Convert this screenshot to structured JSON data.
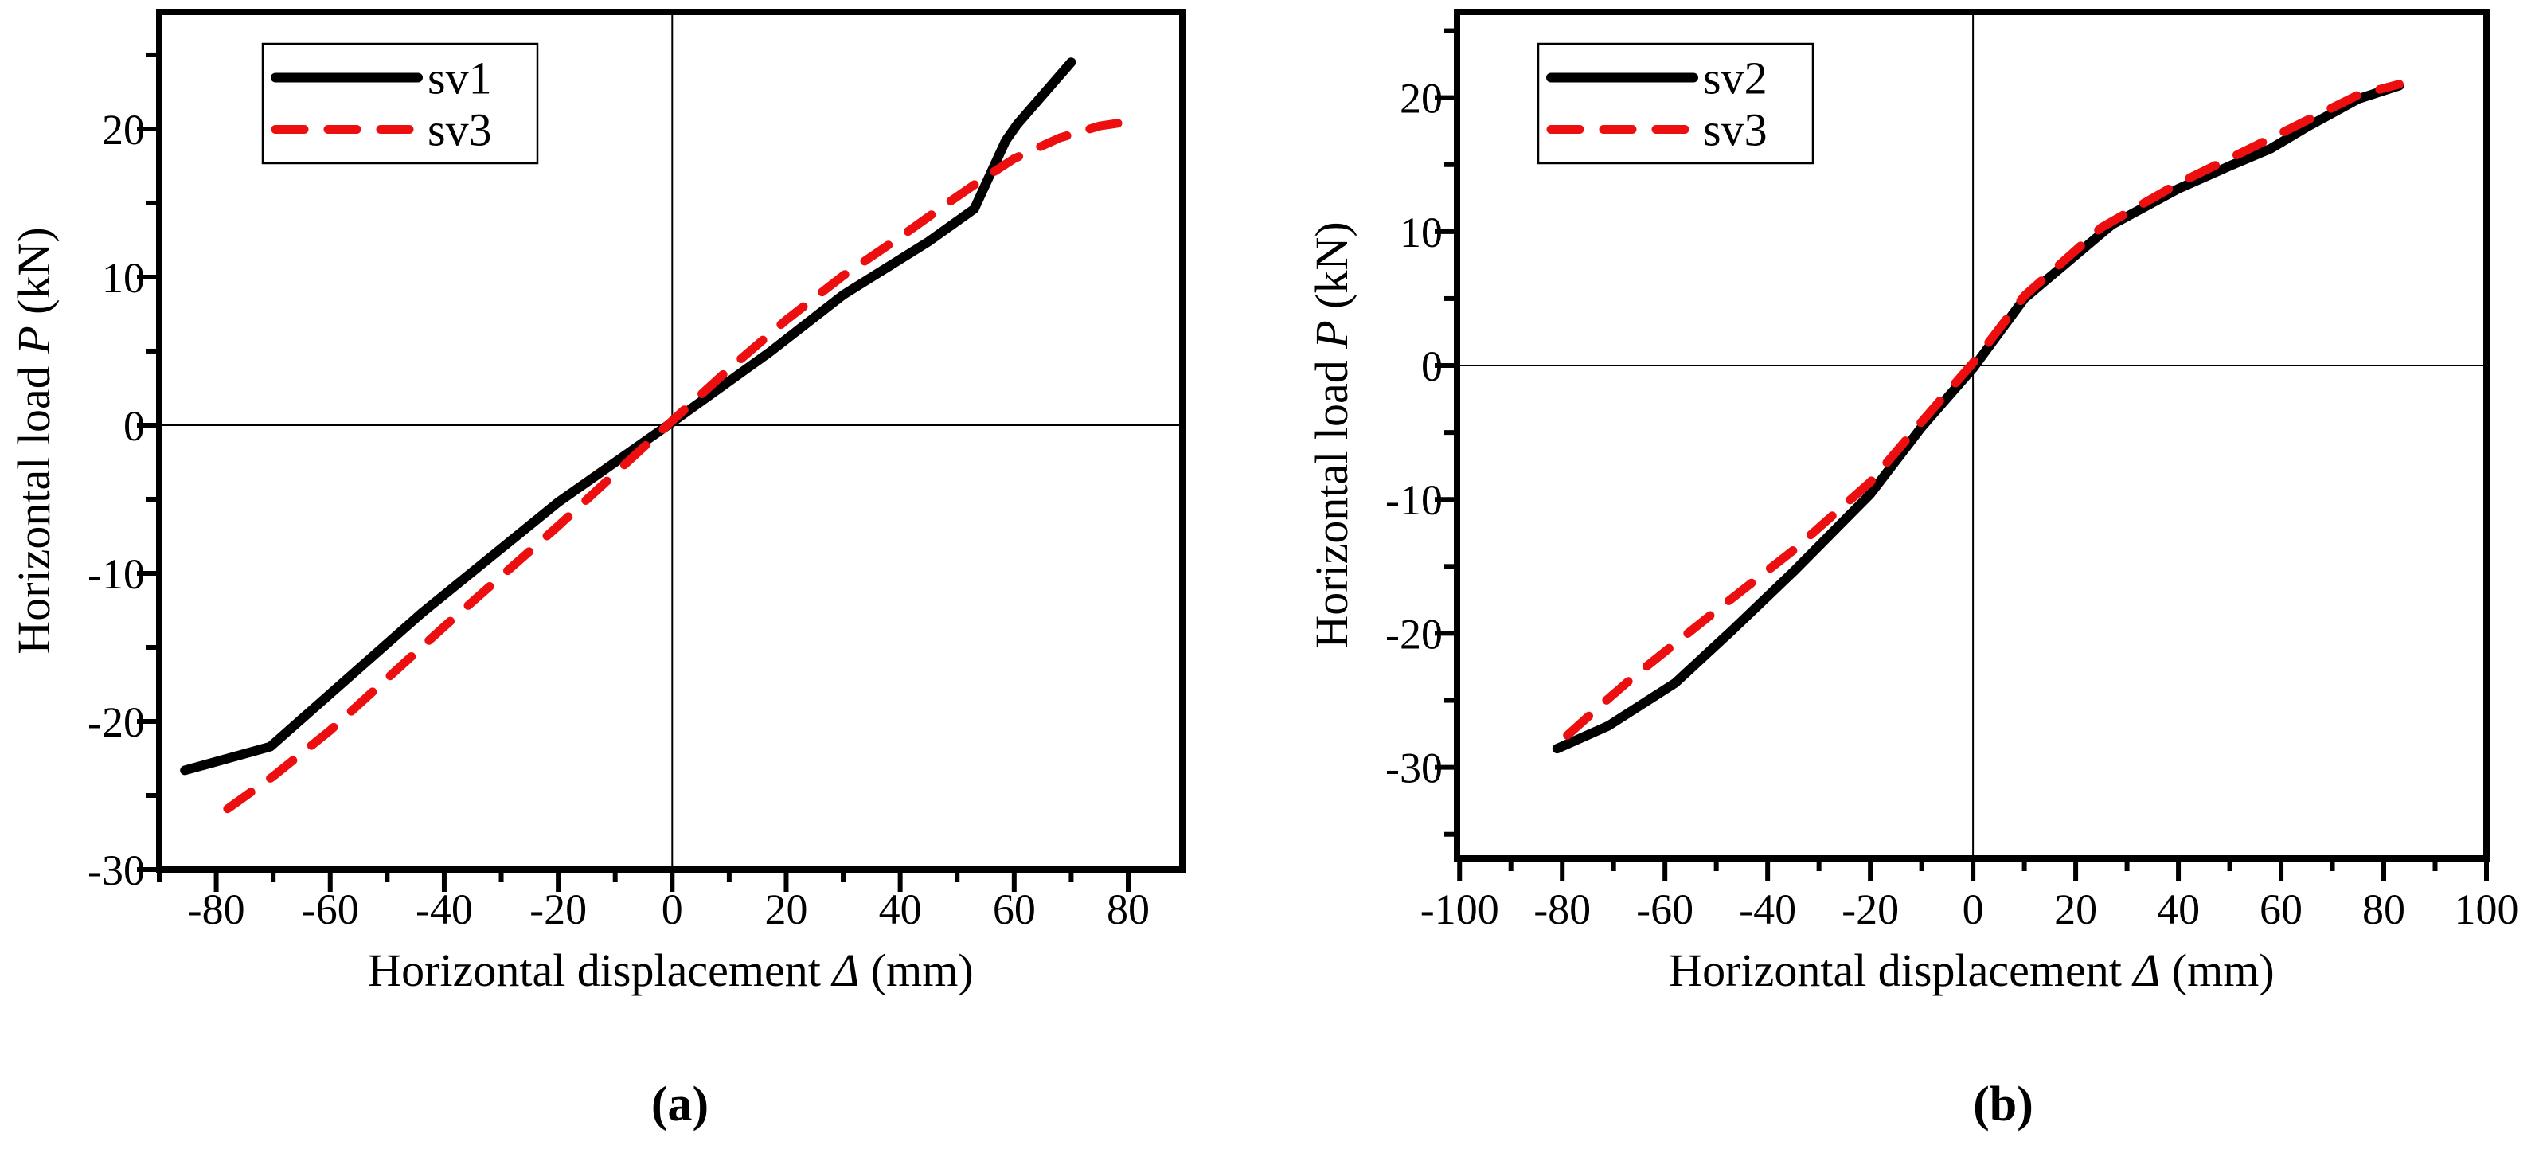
{
  "figure": {
    "background": "#ffffff",
    "black": "#000000",
    "red": "#ed0f0f"
  },
  "captions": {
    "a": "(a)",
    "b": "(b)"
  },
  "chart_data": [
    {
      "id": "a",
      "type": "line",
      "xlabel_parts": [
        {
          "t": "Horizontal displacement "
        },
        {
          "t": "Δ",
          "i": true
        },
        {
          "t": " (mm)"
        }
      ],
      "ylabel_parts": [
        {
          "t": "Horizontal load "
        },
        {
          "t": "P",
          "i": true
        },
        {
          "t": " (kN)"
        }
      ],
      "xlim": [
        -90,
        89.5
      ],
      "ylim": [
        -30,
        27.9
      ],
      "xticks": [
        -80,
        -60,
        -40,
        -20,
        0,
        20,
        40,
        60,
        80
      ],
      "yticks": [
        -30,
        -20,
        -10,
        0,
        10,
        20
      ],
      "xminor_step": 10,
      "yminor_step": 5,
      "zero_lines": true,
      "legend": {
        "entries": [
          {
            "label": "sv1",
            "color": "#000000",
            "dash": false
          },
          {
            "label": "sv3",
            "color": "#ed0f0f",
            "dash": true
          }
        ]
      },
      "series": [
        {
          "name": "sv1",
          "color": "#000000",
          "dash": false,
          "points": [
            [
              -85.5,
              -23.3
            ],
            [
              -70.5,
              -21.7
            ],
            [
              -44,
              -12.7
            ],
            [
              -20,
              -5.2
            ],
            [
              0,
              0.2
            ],
            [
              17,
              4.9
            ],
            [
              30,
              8.8
            ],
            [
              45,
              12.4
            ],
            [
              53,
              14.6
            ],
            [
              58.5,
              19.2
            ],
            [
              60.5,
              20.3
            ],
            [
              70,
              24.5
            ]
          ]
        },
        {
          "name": "sv3",
          "color": "#ed0f0f",
          "dash": true,
          "points": [
            [
              -78,
              -25.9
            ],
            [
              -70,
              -23.7
            ],
            [
              -60,
              -20.6
            ],
            [
              -40,
              -13.6
            ],
            [
              -20,
              -6.8
            ],
            [
              0,
              0.3
            ],
            [
              10,
              3.8
            ],
            [
              20,
              7.1
            ],
            [
              30,
              10.1
            ],
            [
              40,
              12.7
            ],
            [
              48,
              14.9
            ],
            [
              54,
              16.5
            ],
            [
              60,
              18.0
            ],
            [
              68,
              19.4
            ],
            [
              75,
              20.2
            ],
            [
              82,
              20.6
            ]
          ]
        }
      ]
    },
    {
      "id": "b",
      "type": "line",
      "xlabel_parts": [
        {
          "t": "Horizontal displacement "
        },
        {
          "t": "Δ",
          "i": true
        },
        {
          "t": " (mm)"
        }
      ],
      "ylabel_parts": [
        {
          "t": "Horizontal load "
        },
        {
          "t": "P",
          "i": true
        },
        {
          "t": " (kN)"
        }
      ],
      "xlim": [
        -100.5,
        100
      ],
      "ylim": [
        -36.8,
        26.4
      ],
      "xticks": [
        -100,
        -80,
        -60,
        -40,
        -20,
        0,
        20,
        40,
        60,
        80,
        100
      ],
      "yticks": [
        -30,
        -20,
        -10,
        0,
        10,
        20
      ],
      "xminor_step": 10,
      "yminor_step": 5,
      "zero_lines": true,
      "legend": {
        "entries": [
          {
            "label": "sv2",
            "color": "#000000",
            "dash": false
          },
          {
            "label": "sv3",
            "color": "#ed0f0f",
            "dash": true
          }
        ]
      },
      "series": [
        {
          "name": "sv2",
          "color": "#000000",
          "dash": false,
          "points": [
            [
              -81,
              -28.6
            ],
            [
              -71,
              -26.9
            ],
            [
              -58,
              -23.7
            ],
            [
              -47,
              -19.8
            ],
            [
              -35,
              -15.4
            ],
            [
              -20,
              -9.6
            ],
            [
              -10,
              -4.6
            ],
            [
              0,
              -0.2
            ],
            [
              10,
              5.0
            ],
            [
              27,
              10.5
            ],
            [
              40,
              13.2
            ],
            [
              50,
              14.9
            ],
            [
              58,
              16.2
            ],
            [
              65,
              17.8
            ],
            [
              75,
              19.9
            ],
            [
              83,
              20.9
            ]
          ]
        },
        {
          "name": "sv3",
          "color": "#ed0f0f",
          "dash": true,
          "points": [
            [
              -79,
              -27.6
            ],
            [
              -72,
              -25.2
            ],
            [
              -66,
              -23.2
            ],
            [
              -50,
              -18.3
            ],
            [
              -35,
              -13.8
            ],
            [
              -20,
              -8.7
            ],
            [
              -10,
              -4.2
            ],
            [
              0,
              0.2
            ],
            [
              10,
              5.2
            ],
            [
              25,
              10.3
            ],
            [
              40,
              13.6
            ],
            [
              55,
              16.4
            ],
            [
              65,
              18.3
            ],
            [
              75,
              20.2
            ],
            [
              83,
              21.0
            ]
          ]
        }
      ]
    }
  ]
}
